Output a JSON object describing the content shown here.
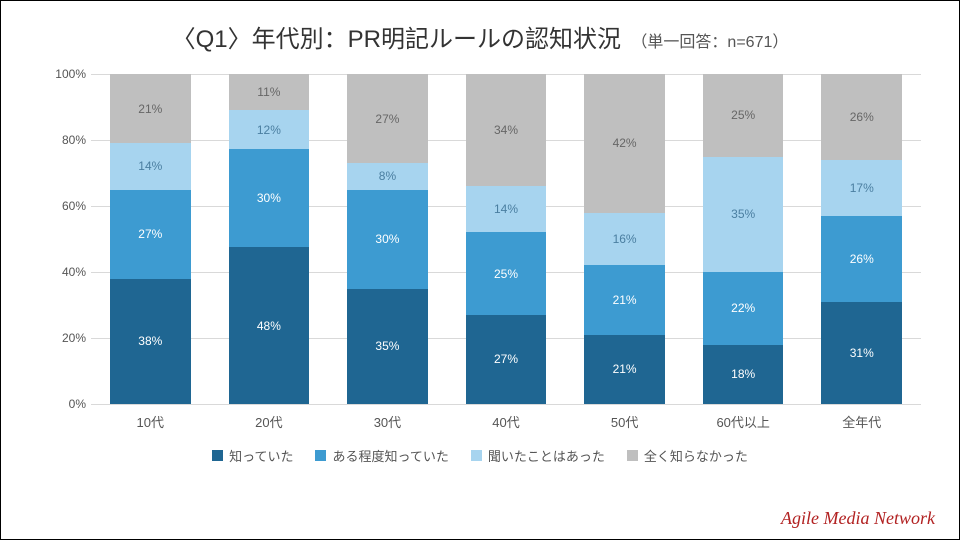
{
  "title_main": "〈Q1〉年代別：PR明記ルールの認知状況",
  "title_sub": "（単一回答：n=671）",
  "chart": {
    "type": "stacked-bar",
    "y_axis": {
      "min": 0,
      "max": 100,
      "tick_step": 20,
      "suffix": "%"
    },
    "grid_color": "#d9d9d9",
    "background_color": "#ffffff",
    "categories": [
      "10代",
      "20代",
      "30代",
      "40代",
      "50代",
      "60代以上",
      "全年代"
    ],
    "series": [
      {
        "name": "知っていた",
        "color": "#1f6692",
        "label_color": "#ffffff"
      },
      {
        "name": "ある程度知っていた",
        "color": "#3d9bd1",
        "label_color": "#ffffff"
      },
      {
        "name": "聞いたことはあった",
        "color": "#a7d4ef",
        "label_color": "#4a7ea0"
      },
      {
        "name": "全く知らなかった",
        "color": "#bfbfbf",
        "label_color": "#666666"
      }
    ],
    "data": [
      [
        38,
        27,
        14,
        21
      ],
      [
        48,
        30,
        12,
        11
      ],
      [
        35,
        30,
        8,
        27
      ],
      [
        27,
        25,
        14,
        34
      ],
      [
        21,
        21,
        16,
        42
      ],
      [
        18,
        22,
        35,
        25
      ],
      [
        31,
        26,
        17,
        26
      ]
    ]
  },
  "brand": "Agile Media Network"
}
